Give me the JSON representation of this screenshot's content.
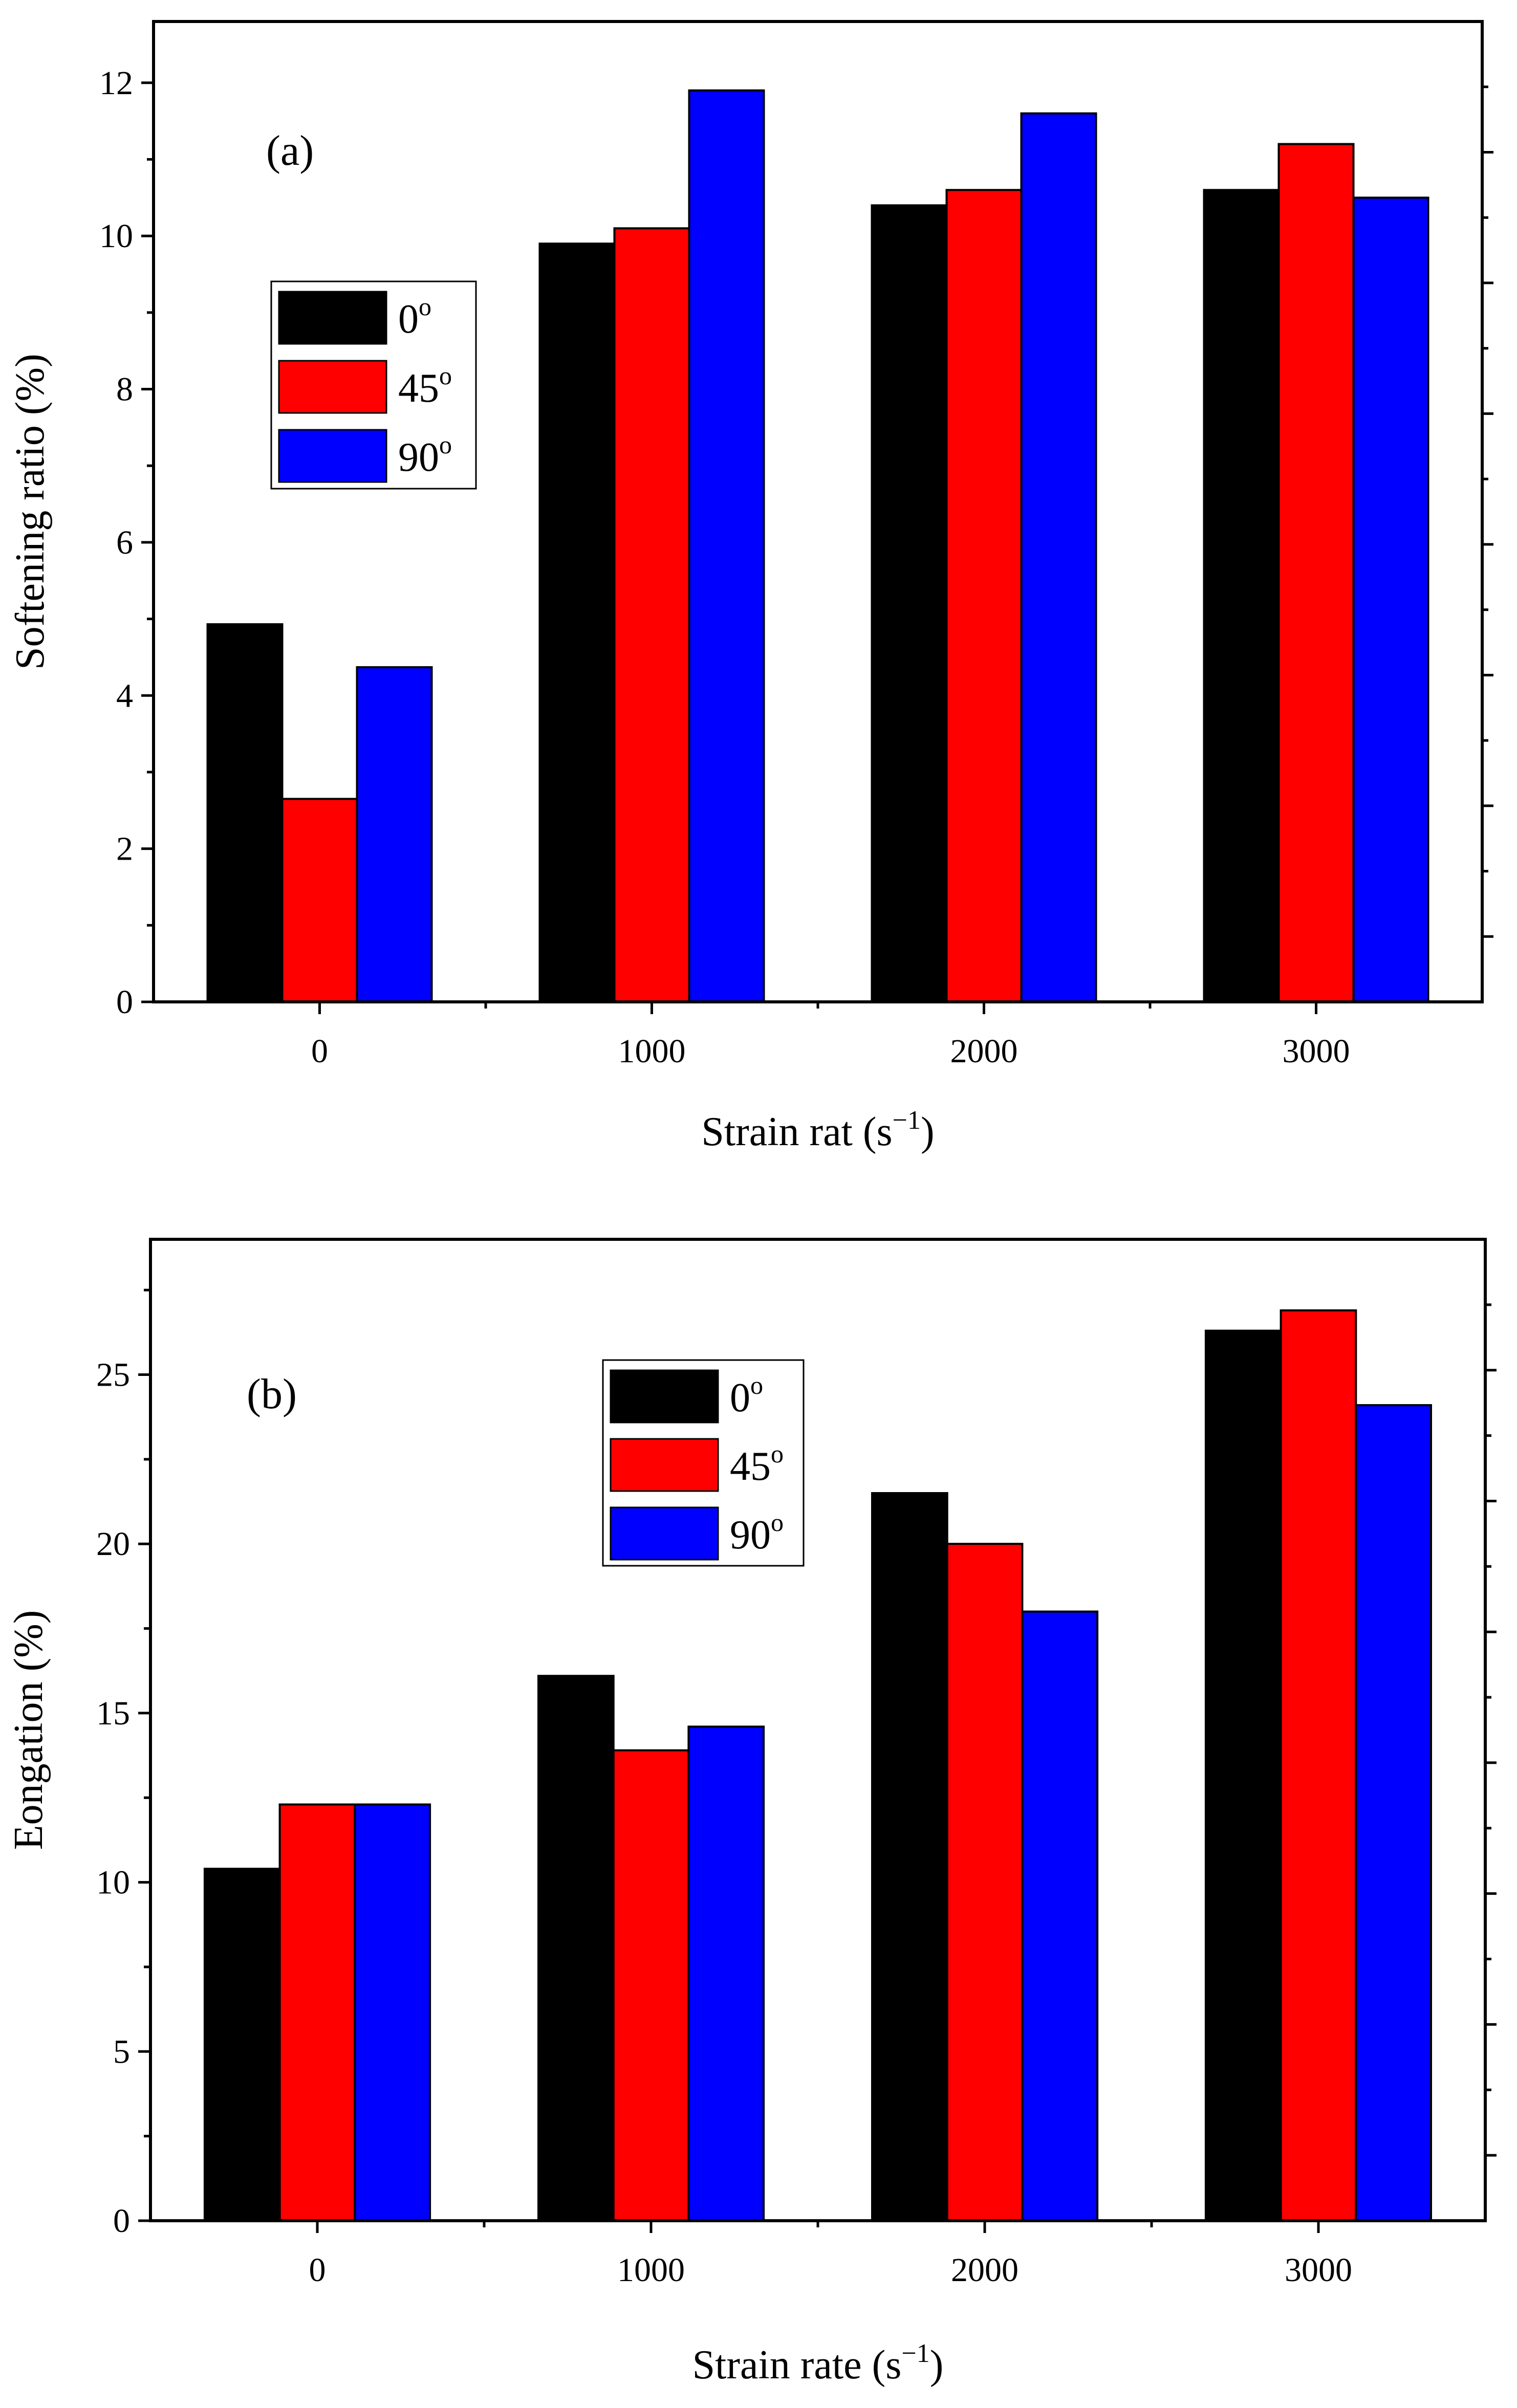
{
  "colors": {
    "0deg": "#000000",
    "45deg": "#ff0000",
    "90deg": "#0000ff"
  },
  "chart_data": [
    {
      "type": "bar",
      "panel_tag": "(a)",
      "title": "",
      "categories": [
        "0",
        "1000",
        "2000",
        "3000"
      ],
      "xlabel": "Strain rat (s",
      "xlabel_unit_sup": "−1",
      "xlabel_close": ")",
      "ylabel": "Softening ratio (%)",
      "ylim": [
        0,
        12.8
      ],
      "yticks": [
        "0",
        "2",
        "4",
        "6",
        "8",
        "10",
        "12"
      ],
      "legend_position": "upper-left",
      "series": [
        {
          "name": "0",
          "sup": "o",
          "color": "#000000",
          "values": [
            4.93,
            9.9,
            10.4,
            10.6
          ]
        },
        {
          "name": "45",
          "sup": "o",
          "color": "#ff0000",
          "values": [
            2.65,
            10.1,
            10.6,
            11.2
          ]
        },
        {
          "name": "90",
          "sup": "o",
          "color": "#0000ff",
          "values": [
            4.37,
            11.9,
            11.6,
            10.5
          ]
        }
      ]
    },
    {
      "type": "bar",
      "panel_tag": "(b)",
      "title": "",
      "categories": [
        "0",
        "1000",
        "2000",
        "3000"
      ],
      "xlabel": "Strain rate (s",
      "xlabel_unit_sup": "−1",
      "xlabel_close": ")",
      "ylabel": "Eongation (%)",
      "ylim": [
        0,
        29
      ],
      "yticks": [
        "0",
        "5",
        "10",
        "15",
        "20",
        "25"
      ],
      "legend_position": "upper-center",
      "series": [
        {
          "name": "0",
          "sup": "o",
          "color": "#000000",
          "values": [
            10.4,
            16.1,
            21.5,
            26.3
          ]
        },
        {
          "name": "45",
          "sup": "o",
          "color": "#ff0000",
          "values": [
            12.3,
            13.9,
            20.0,
            26.9
          ]
        },
        {
          "name": "90",
          "sup": "o",
          "color": "#0000ff",
          "values": [
            12.3,
            14.6,
            18.0,
            24.1
          ]
        }
      ]
    }
  ]
}
